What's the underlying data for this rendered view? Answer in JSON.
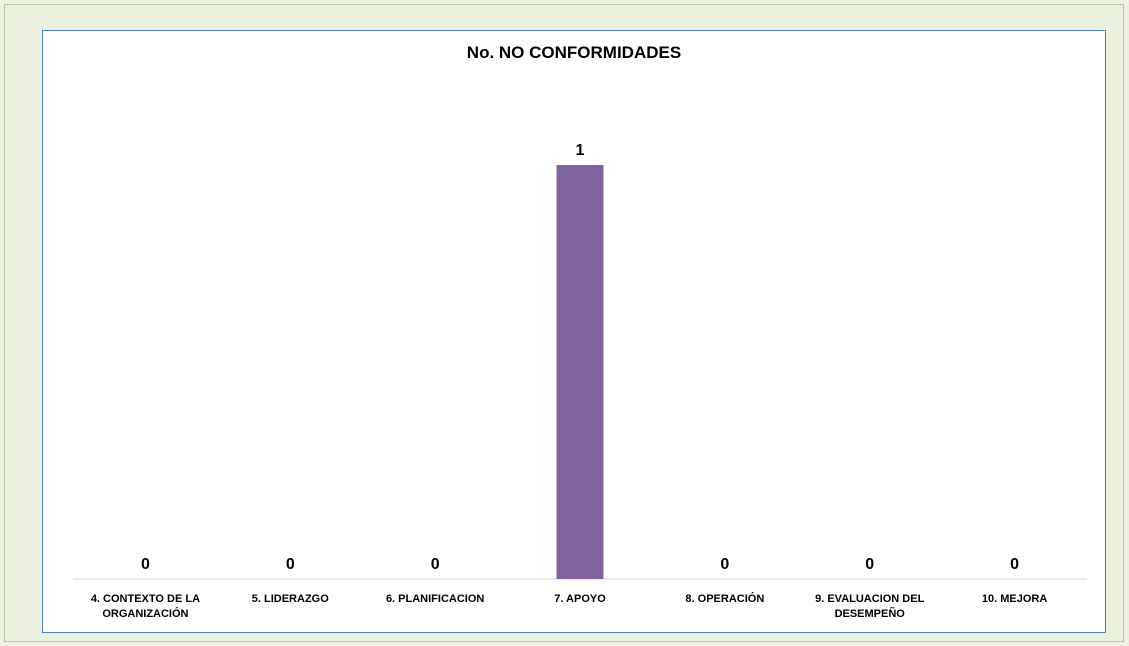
{
  "chart_data": {
    "type": "bar",
    "title": "No. NO CONFORMIDADES",
    "xlabel": "",
    "ylabel": "",
    "categories": [
      [
        "4. CONTEXTO DE LA",
        "ORGANIZACIÓN"
      ],
      [
        "5. LIDERAZGO"
      ],
      [
        "6. PLANIFICACION"
      ],
      [
        "7. APOYO"
      ],
      [
        "8. OPERACIÓN"
      ],
      [
        "9. EVALUACION DEL",
        "DESEMPEÑO"
      ],
      [
        "10. MEJORA"
      ]
    ],
    "values": [
      0,
      0,
      0,
      1,
      0,
      0,
      0
    ],
    "data_labels": [
      "0",
      "0",
      "0",
      "1",
      "0",
      "0",
      "0"
    ],
    "ylim": [
      0,
      1
    ],
    "grid": false,
    "legend": "none",
    "bar_color": "#8064a2",
    "axis_color": "#d9d9d9",
    "border_color": "#4f81bd",
    "background_color": "#ebf1de"
  }
}
